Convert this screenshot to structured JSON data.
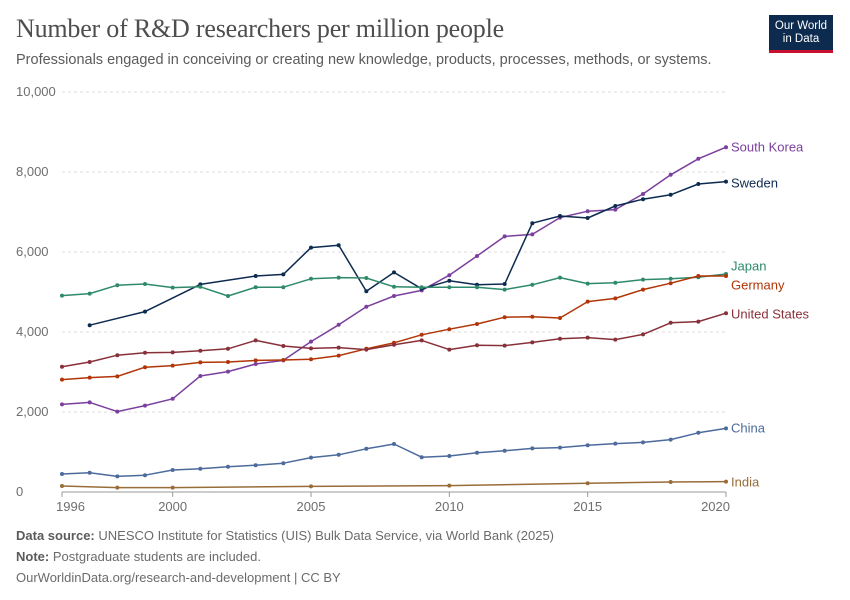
{
  "header": {
    "title": "Number of R&D researchers per million people",
    "subtitle": "Professionals engaged in conceiving or creating new knowledge, products, processes, methods, or systems.",
    "logo_line1": "Our World",
    "logo_line2": "in Data"
  },
  "footer": {
    "source_label": "Data source:",
    "source_text": "UNESCO Institute for Statistics (UIS) Bulk Data Service, via World Bank (2025)",
    "note_label": "Note:",
    "note_text": "Postgraduate students are included.",
    "link": "OurWorldinData.org/research-and-development | CC BY"
  },
  "colors": {
    "brand": "#0d2a4f",
    "brand_accent": "#c8102e",
    "grid": "#dddddd"
  },
  "chart_data": {
    "type": "line",
    "title": "Number of R&D researchers per million people",
    "xlim": [
      1996,
      2020
    ],
    "ylim": [
      0,
      10000
    ],
    "x_ticks": [
      1996,
      2000,
      2005,
      2010,
      2015,
      2020
    ],
    "x_tick_labels": [
      "1996",
      "2000",
      "2005",
      "2010",
      "2015",
      "2020"
    ],
    "y_ticks": [
      0,
      2000,
      4000,
      6000,
      8000,
      10000
    ],
    "y_tick_labels": [
      "0",
      "2,000",
      "4,000",
      "6,000",
      "8,000",
      "10,000"
    ],
    "grid": "horizontal dashed",
    "legend": "end-of-line labels on the right",
    "series": [
      {
        "name": "South Korea",
        "color": "#7b3f9e",
        "x": [
          1996,
          1997,
          1998,
          1999,
          2000,
          2001,
          2002,
          2003,
          2004,
          2005,
          2006,
          2007,
          2008,
          2009,
          2010,
          2011,
          2012,
          2013,
          2014,
          2015,
          2016,
          2017,
          2018,
          2019,
          2020
        ],
        "y": [
          2190,
          2240,
          2010,
          2160,
          2330,
          2900,
          3010,
          3200,
          3290,
          3760,
          4180,
          4630,
          4900,
          5040,
          5420,
          5900,
          6390,
          6440,
          6860,
          7020,
          7060,
          7450,
          7930,
          8330,
          8620
        ]
      },
      {
        "name": "Sweden",
        "color": "#0d2a4f",
        "x": [
          1997,
          1999,
          2001,
          2003,
          2004,
          2005,
          2006,
          2007,
          2008,
          2009,
          2010,
          2011,
          2012,
          2013,
          2014,
          2015,
          2016,
          2017,
          2018,
          2019,
          2020
        ],
        "y": [
          4170,
          4510,
          5190,
          5400,
          5440,
          6110,
          6170,
          5020,
          5490,
          5080,
          5280,
          5180,
          5200,
          6720,
          6900,
          6850,
          7150,
          7320,
          7430,
          7700,
          7760
        ]
      },
      {
        "name": "Japan",
        "color": "#2e8a6a",
        "x": [
          1996,
          1997,
          1998,
          1999,
          2000,
          2001,
          2002,
          2003,
          2004,
          2005,
          2006,
          2007,
          2008,
          2009,
          2010,
          2011,
          2012,
          2013,
          2014,
          2015,
          2016,
          2017,
          2018,
          2019,
          2020
        ],
        "y": [
          4910,
          4960,
          5170,
          5200,
          5110,
          5130,
          4900,
          5120,
          5120,
          5330,
          5360,
          5350,
          5130,
          5120,
          5120,
          5120,
          5060,
          5180,
          5360,
          5210,
          5230,
          5310,
          5330,
          5370,
          5450
        ]
      },
      {
        "name": "Germany",
        "color": "#b13507",
        "x": [
          1996,
          1997,
          1998,
          1999,
          2000,
          2001,
          2002,
          2003,
          2004,
          2005,
          2006,
          2007,
          2008,
          2009,
          2010,
          2011,
          2012,
          2013,
          2014,
          2015,
          2016,
          2017,
          2018,
          2019,
          2020
        ],
        "y": [
          2810,
          2860,
          2890,
          3120,
          3160,
          3240,
          3250,
          3290,
          3300,
          3320,
          3410,
          3580,
          3730,
          3930,
          4070,
          4200,
          4370,
          4380,
          4350,
          4760,
          4840,
          5060,
          5220,
          5400,
          5400
        ]
      },
      {
        "name": "United States",
        "color": "#883039",
        "x": [
          1996,
          1997,
          1998,
          1999,
          2000,
          2001,
          2002,
          2003,
          2004,
          2005,
          2006,
          2007,
          2008,
          2009,
          2010,
          2011,
          2012,
          2013,
          2014,
          2015,
          2016,
          2017,
          2018,
          2019,
          2020
        ],
        "y": [
          3130,
          3250,
          3420,
          3480,
          3490,
          3530,
          3580,
          3790,
          3650,
          3590,
          3610,
          3560,
          3680,
          3790,
          3560,
          3670,
          3660,
          3740,
          3830,
          3860,
          3810,
          3940,
          4230,
          4260,
          4470
        ]
      },
      {
        "name": "China",
        "color": "#4c6a9c",
        "x": [
          1996,
          1997,
          1998,
          1999,
          2000,
          2001,
          2002,
          2003,
          2004,
          2005,
          2006,
          2007,
          2008,
          2009,
          2010,
          2011,
          2012,
          2013,
          2014,
          2015,
          2016,
          2017,
          2018,
          2019,
          2020
        ],
        "y": [
          450,
          480,
          390,
          420,
          550,
          580,
          630,
          670,
          720,
          860,
          930,
          1080,
          1200,
          870,
          900,
          980,
          1030,
          1090,
          1110,
          1170,
          1210,
          1240,
          1310,
          1480,
          1590
        ]
      },
      {
        "name": "India",
        "color": "#986d39",
        "x": [
          1996,
          1998,
          2000,
          2005,
          2010,
          2015,
          2018,
          2020
        ],
        "y": [
          150,
          110,
          110,
          140,
          160,
          220,
          250,
          260
        ]
      }
    ]
  }
}
